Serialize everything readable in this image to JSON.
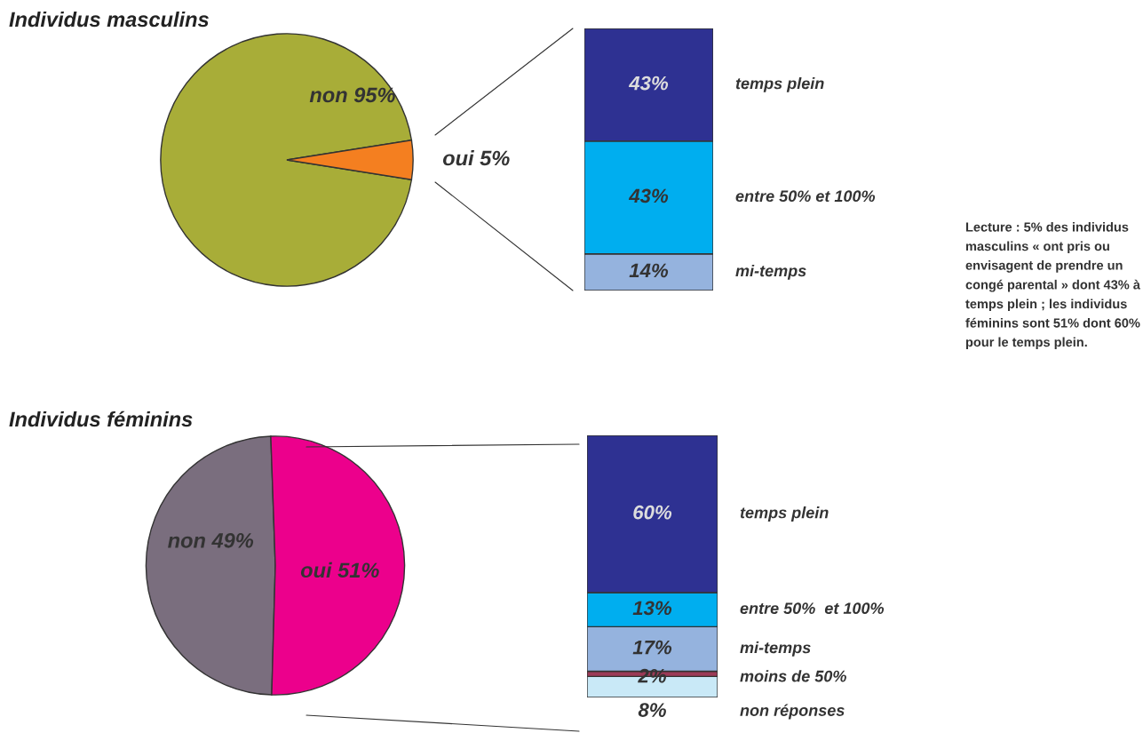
{
  "chart_data": [
    {
      "type": "pie",
      "title": "Individus masculins",
      "categories": [
        "non",
        "oui"
      ],
      "values": [
        95,
        5
      ],
      "colors": [
        "#a8ad38",
        "#f47f20"
      ],
      "value_labels": [
        "95%",
        "5%"
      ]
    },
    {
      "type": "bar",
      "stacked": true,
      "categories": [
        null
      ],
      "series": [
        {
          "name": "mi-temps",
          "color": "#95b3de",
          "values": [
            14
          ],
          "value_labels": [
            "14%"
          ]
        },
        {
          "name": "entre 50% et 100%",
          "color": "#00aeef",
          "values": [
            43
          ],
          "value_labels": [
            "43%"
          ]
        },
        {
          "name": "temps plein",
          "color": "#2e3192",
          "values": [
            43
          ],
          "value_labels": [
            "43%"
          ]
        }
      ]
    },
    {
      "type": "pie",
      "title": "Individus féminins",
      "categories": [
        "non",
        "oui"
      ],
      "values": [
        49,
        51
      ],
      "colors": [
        "#7a6e7e",
        "#ec008c"
      ],
      "value_labels": [
        "49%",
        "51%"
      ]
    },
    {
      "type": "bar",
      "stacked": true,
      "categories": [
        null
      ],
      "series": [
        {
          "name": "non réponses",
          "color": "#c9e9f7",
          "values": [
            8
          ],
          "value_labels": [
            "8%"
          ]
        },
        {
          "name": "moins de 50%",
          "color": "#9b3a56",
          "values": [
            2
          ],
          "value_labels": [
            "2%"
          ]
        },
        {
          "name": "mi-temps",
          "color": "#95b3de",
          "values": [
            17
          ],
          "value_labels": [
            "17%"
          ]
        },
        {
          "name": "entre 50%  et 100%",
          "color": "#00aeef",
          "values": [
            13
          ],
          "value_labels": [
            "13%"
          ]
        },
        {
          "name": "temps plein",
          "color": "#2e3192",
          "values": [
            60
          ],
          "value_labels": [
            "60%"
          ]
        }
      ],
      "annotations": [
        "Lecture : 5% des individus masculins « ont pris ou envisagent de prendre un congé parental » dont 43% à temps plein ; les individus féminins sont 51% dont 60% pour le temps plein."
      ]
    }
  ]
}
